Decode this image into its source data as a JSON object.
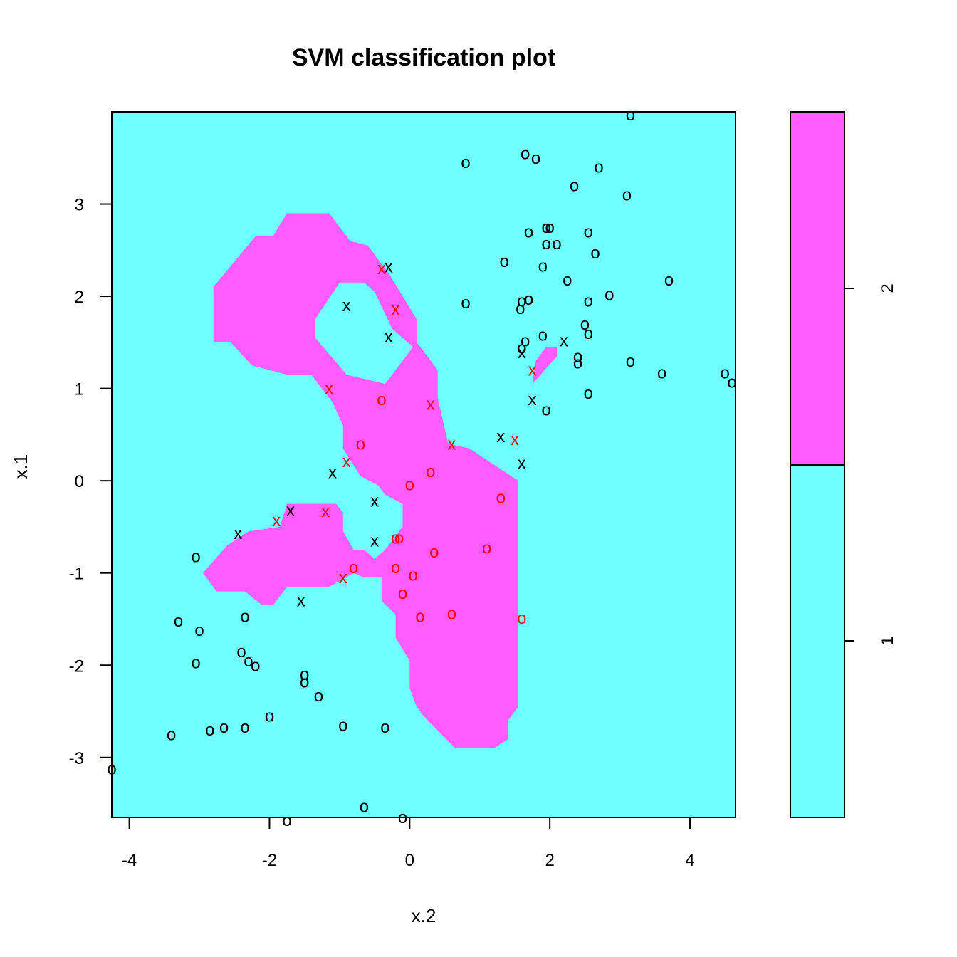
{
  "chart_data": {
    "type": "scatter",
    "title": "SVM classification plot",
    "xlabel": "x.2",
    "ylabel": "x.1",
    "xlim": [
      -4.25,
      4.65
    ],
    "ylim": [
      -3.65,
      4.0
    ],
    "x_ticks": [
      "-4",
      "-2",
      "0",
      "2",
      "4"
    ],
    "y_ticks": [
      "-3",
      "-2",
      "-1",
      "0",
      "1",
      "2",
      "3"
    ],
    "grid": false,
    "legend": {
      "placement": "right",
      "entries": [
        {
          "label": "1",
          "color": "#6fffff"
        },
        {
          "label": "2",
          "color": "#ff5cff"
        }
      ],
      "split_fraction": 0.5
    },
    "colors": {
      "class1_region": "#6fffff",
      "class2_region": "#ff5cff",
      "normal_point": "#000000",
      "support_vector": "#ff0000"
    },
    "marker_symbols": {
      "class1": "o",
      "class2": "x"
    },
    "decision_region_class2": [
      [
        [
          -2.8,
          2.1
        ],
        [
          -2.2,
          2.65
        ],
        [
          -1.95,
          2.65
        ],
        [
          -1.75,
          2.9
        ],
        [
          -1.15,
          2.9
        ],
        [
          -0.85,
          2.6
        ],
        [
          -0.6,
          2.55
        ],
        [
          -0.4,
          2.35
        ],
        [
          -0.3,
          2.25
        ],
        [
          -0.1,
          2.0
        ],
        [
          0.1,
          1.75
        ],
        [
          0.1,
          1.5
        ],
        [
          0.4,
          1.2
        ],
        [
          0.4,
          0.9
        ],
        [
          0.55,
          0.4
        ],
        [
          0.85,
          0.35
        ],
        [
          1.15,
          0.2
        ],
        [
          1.55,
          0.0
        ],
        [
          1.55,
          -2.45
        ],
        [
          1.4,
          -2.6
        ],
        [
          1.4,
          -2.8
        ],
        [
          1.2,
          -2.9
        ],
        [
          0.65,
          -2.9
        ],
        [
          0.2,
          -2.55
        ],
        [
          0.1,
          -2.45
        ],
        [
          0.0,
          -2.25
        ],
        [
          0.0,
          -1.95
        ],
        [
          -0.2,
          -1.7
        ],
        [
          -0.2,
          -1.45
        ],
        [
          -0.4,
          -1.3
        ],
        [
          -0.4,
          -1.05
        ],
        [
          -0.65,
          -1.05
        ],
        [
          -0.8,
          -1.0
        ],
        [
          -0.8,
          -0.75
        ],
        [
          -0.95,
          -0.55
        ],
        [
          -0.95,
          -0.35
        ],
        [
          -1.05,
          -0.25
        ],
        [
          -1.75,
          -0.25
        ],
        [
          -1.85,
          -0.5
        ],
        [
          -2.3,
          -0.55
        ],
        [
          -2.6,
          -0.7
        ],
        [
          -2.95,
          -1.0
        ],
        [
          -2.75,
          -1.2
        ],
        [
          -2.35,
          -1.2
        ],
        [
          -2.1,
          -1.35
        ],
        [
          -1.95,
          -1.35
        ],
        [
          -1.75,
          -1.15
        ],
        [
          -1.15,
          -1.15
        ],
        [
          -0.8,
          -1.0
        ],
        [
          -0.8,
          -0.75
        ],
        [
          -0.65,
          -0.75
        ],
        [
          -0.5,
          -0.85
        ],
        [
          -0.35,
          -0.75
        ],
        [
          -0.1,
          -0.5
        ],
        [
          -0.1,
          -0.25
        ],
        [
          -0.35,
          -0.15
        ],
        [
          -0.45,
          -0.05
        ],
        [
          -0.7,
          0.05
        ],
        [
          -0.95,
          0.35
        ],
        [
          -0.95,
          0.6
        ],
        [
          -1.1,
          0.85
        ],
        [
          -1.4,
          1.15
        ],
        [
          -1.75,
          1.15
        ],
        [
          -2.25,
          1.25
        ],
        [
          -2.55,
          1.5
        ],
        [
          -2.8,
          1.5
        ]
      ],
      [
        [
          -1.35,
          1.55
        ],
        [
          -0.9,
          1.15
        ],
        [
          -0.35,
          1.05
        ],
        [
          0.05,
          1.45
        ],
        [
          -0.25,
          1.65
        ],
        [
          -0.5,
          2.05
        ],
        [
          -0.65,
          2.15
        ],
        [
          -1.0,
          2.15
        ],
        [
          -1.35,
          1.75
        ]
      ],
      [
        [
          1.75,
          1.05
        ],
        [
          1.8,
          1.3
        ],
        [
          1.95,
          1.45
        ],
        [
          2.1,
          1.45
        ],
        [
          2.1,
          1.35
        ]
      ]
    ],
    "class1_points": [
      [
        3.15,
        3.97
      ],
      [
        0.8,
        3.45
      ],
      [
        1.65,
        3.55
      ],
      [
        1.8,
        3.5
      ],
      [
        2.7,
        3.4
      ],
      [
        2.35,
        3.2
      ],
      [
        3.1,
        3.1
      ],
      [
        1.95,
        2.75
      ],
      [
        2.0,
        2.75
      ],
      [
        2.55,
        2.7
      ],
      [
        1.7,
        2.7
      ],
      [
        1.95,
        2.57
      ],
      [
        2.1,
        2.57
      ],
      [
        2.65,
        2.47
      ],
      [
        1.35,
        2.38
      ],
      [
        1.9,
        2.33
      ],
      [
        2.25,
        2.18
      ],
      [
        3.7,
        2.18
      ],
      [
        2.85,
        2.02
      ],
      [
        0.8,
        1.93
      ],
      [
        1.6,
        1.95
      ],
      [
        1.7,
        1.97
      ],
      [
        2.55,
        1.95
      ],
      [
        1.58,
        1.87
      ],
      [
        2.5,
        1.7
      ],
      [
        2.55,
        1.6
      ],
      [
        1.9,
        1.58
      ],
      [
        1.65,
        1.52
      ],
      [
        1.6,
        1.44
      ],
      [
        2.4,
        1.35
      ],
      [
        2.4,
        1.28
      ],
      [
        3.15,
        1.3
      ],
      [
        3.6,
        1.17
      ],
      [
        4.5,
        1.17
      ],
      [
        4.6,
        1.07
      ],
      [
        2.55,
        0.95
      ],
      [
        1.95,
        0.77
      ],
      [
        -3.05,
        -0.82
      ],
      [
        -3.3,
        -1.52
      ],
      [
        -3.0,
        -1.62
      ],
      [
        -2.35,
        -1.47
      ],
      [
        -2.4,
        -1.85
      ],
      [
        -2.3,
        -1.95
      ],
      [
        -2.2,
        -2.0
      ],
      [
        -3.05,
        -1.97
      ],
      [
        -1.5,
        -2.1
      ],
      [
        -1.5,
        -2.18
      ],
      [
        -1.3,
        -2.33
      ],
      [
        -2.0,
        -2.55
      ],
      [
        -0.95,
        -2.65
      ],
      [
        -0.35,
        -2.67
      ],
      [
        -2.35,
        -2.67
      ],
      [
        -2.65,
        -2.67
      ],
      [
        -2.85,
        -2.7
      ],
      [
        -3.4,
        -2.75
      ],
      [
        -4.25,
        -3.12
      ],
      [
        -0.65,
        -3.53
      ],
      [
        -0.1,
        -3.65
      ],
      [
        -1.75,
        -3.68
      ]
    ],
    "class2_points": [
      [
        -0.3,
        2.32
      ],
      [
        -0.9,
        1.9
      ],
      [
        -0.3,
        1.56
      ],
      [
        2.2,
        1.52
      ],
      [
        1.6,
        1.39
      ],
      [
        1.75,
        0.88
      ],
      [
        1.3,
        0.48
      ],
      [
        1.6,
        0.19
      ],
      [
        -1.1,
        0.09
      ],
      [
        -0.5,
        -0.22
      ],
      [
        -1.7,
        -0.32
      ],
      [
        -2.45,
        -0.57
      ],
      [
        -0.5,
        -0.65
      ],
      [
        -1.55,
        -1.3
      ]
    ],
    "support_vectors_class1": [
      [
        -0.4,
        0.88
      ],
      [
        -0.7,
        0.4
      ],
      [
        0.3,
        0.1
      ],
      [
        0.0,
        -0.04
      ],
      [
        1.3,
        -0.18
      ],
      [
        -0.15,
        -0.62
      ],
      [
        -0.2,
        -0.62
      ],
      [
        0.35,
        -0.77
      ],
      [
        1.1,
        -0.73
      ],
      [
        -0.8,
        -0.94
      ],
      [
        -0.2,
        -0.94
      ],
      [
        0.05,
        -1.02
      ],
      [
        -0.1,
        -1.22
      ],
      [
        0.15,
        -1.47
      ],
      [
        0.6,
        -1.44
      ],
      [
        1.6,
        -1.49
      ]
    ],
    "support_vectors_class2": [
      [
        -0.4,
        2.3
      ],
      [
        -0.2,
        1.86
      ],
      [
        1.75,
        1.2
      ],
      [
        -1.15,
        1.0
      ],
      [
        0.3,
        0.83
      ],
      [
        0.6,
        0.4
      ],
      [
        1.5,
        0.45
      ],
      [
        -0.9,
        0.21
      ],
      [
        -1.2,
        -0.33
      ],
      [
        -1.9,
        -0.43
      ],
      [
        -0.95,
        -1.05
      ]
    ]
  }
}
